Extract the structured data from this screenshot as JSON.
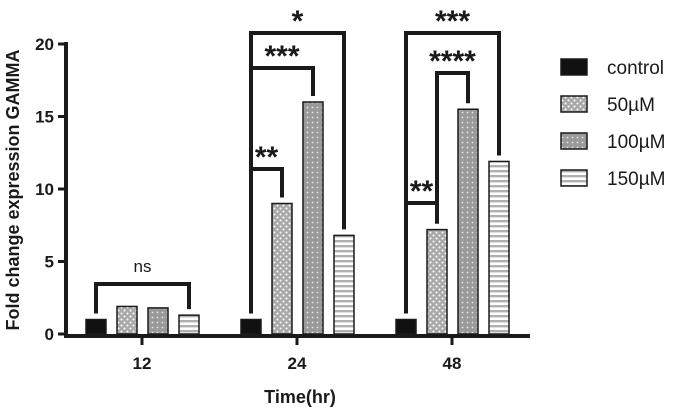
{
  "chart_data": {
    "type": "bar",
    "categories": [
      "12",
      "24",
      "48"
    ],
    "series": [
      {
        "name": "control",
        "values": [
          1.0,
          1.0,
          1.0
        ]
      },
      {
        "name": "50µM",
        "values": [
          1.9,
          9.0,
          7.2
        ]
      },
      {
        "name": "100µM",
        "values": [
          1.8,
          16.0,
          15.5
        ]
      },
      {
        "name": "150µM",
        "values": [
          1.3,
          6.8,
          11.9
        ]
      }
    ],
    "xlabel": "Time(hr)",
    "ylabel": "Fold change expression GAMMA",
    "ylim": [
      0,
      20
    ],
    "yticks": [
      "0",
      "5",
      "10",
      "15",
      "20"
    ],
    "grid": false,
    "legend_position": "right",
    "significance": [
      {
        "group": "12",
        "label": "ns",
        "from": "control",
        "to": "150µM"
      },
      {
        "group": "24",
        "label": "**",
        "from": "control",
        "to": "50µM"
      },
      {
        "group": "24",
        "label": "***",
        "from": "control",
        "to": "100µM"
      },
      {
        "group": "24",
        "label": "*",
        "from": "control",
        "to": "150µM"
      },
      {
        "group": "48",
        "label": "**",
        "from": "control",
        "to": "50µM"
      },
      {
        "group": "48",
        "label": "****",
        "from": "50µM",
        "to": "100µM"
      },
      {
        "group": "48",
        "label": "***",
        "from": "control",
        "to": "150µM"
      }
    ]
  },
  "colors": {
    "control": "#111111",
    "s50": "#a8a8a8",
    "s100": "#9c9c9c",
    "s150": "#ececec",
    "stroke": "#1a1a1a"
  }
}
